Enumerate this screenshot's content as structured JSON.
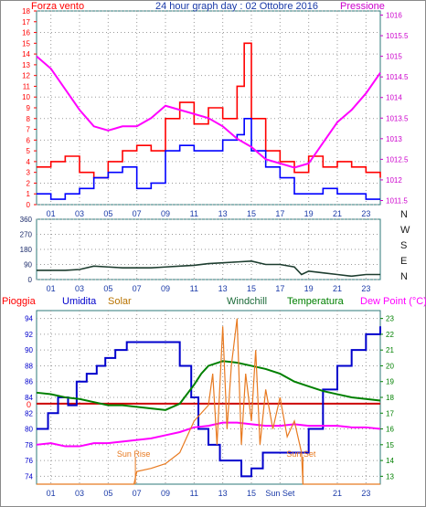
{
  "chart_data": [
    {
      "type": "line",
      "title": "24 hour graph day : 02 Ottobre 2016",
      "left_label": "Forza vento",
      "right_label": "Pressione",
      "x_ticks": [
        "01",
        "03",
        "05",
        "07",
        "09",
        "11",
        "13",
        "15",
        "17",
        "19",
        "21",
        "23"
      ],
      "y_left": {
        "min": 0,
        "max": 18,
        "ticks": [
          "0",
          "1",
          "2",
          "3",
          "4",
          "5",
          "6",
          "7",
          "8",
          "9",
          "10",
          "11",
          "12",
          "13",
          "14",
          "15",
          "16",
          "17",
          "18"
        ]
      },
      "y_right": {
        "min": 1011.4,
        "max": 1016.1,
        "ticks": [
          "1011.5",
          "1012",
          "1012.5",
          "1013",
          "1013.5",
          "1014",
          "1014.5",
          "1015",
          "1015.5",
          "1016"
        ]
      },
      "grid": true,
      "colors": {
        "gust": "#ff0000",
        "wind": "#0000ff",
        "pressure": "#ff00ff"
      },
      "series": [
        {
          "key": "gust",
          "x": [
            0.0,
            1.0,
            2.0,
            3.0,
            4.0,
            5.0,
            6.0,
            7.0,
            8.0,
            9.0,
            10.0,
            11.0,
            12.0,
            13.0,
            14.0,
            14.5,
            15.0,
            16.0,
            17.0,
            18.0,
            19.0,
            20.0,
            21.0,
            22.0,
            23.0,
            24.0
          ],
          "y": [
            3.5,
            4.0,
            4.5,
            3.0,
            2.5,
            4.0,
            5.0,
            5.5,
            5.0,
            8.0,
            9.5,
            7.5,
            9.0,
            8.0,
            11.0,
            15.0,
            8.0,
            5.0,
            4.0,
            3.0,
            4.5,
            3.5,
            4.0,
            3.5,
            3.0,
            2.5
          ]
        },
        {
          "key": "wind",
          "x": [
            0.0,
            1.0,
            2.0,
            3.0,
            4.0,
            5.0,
            6.0,
            7.0,
            8.0,
            9.0,
            10.0,
            11.0,
            12.0,
            13.0,
            14.0,
            14.5,
            15.0,
            16.0,
            17.0,
            18.0,
            19.0,
            20.0,
            21.0,
            22.0,
            23.0,
            24.0
          ],
          "y": [
            1.0,
            0.5,
            1.0,
            1.5,
            2.5,
            3.0,
            3.5,
            1.5,
            2.0,
            5.0,
            5.5,
            5.0,
            5.0,
            6.0,
            6.5,
            8.0,
            5.0,
            3.5,
            2.5,
            1.0,
            1.0,
            1.5,
            1.0,
            1.0,
            0.5,
            0.5
          ]
        },
        {
          "key": "pressure",
          "x": [
            0.0,
            1.0,
            2.0,
            3.0,
            4.0,
            5.0,
            6.0,
            7.0,
            8.0,
            9.0,
            10.0,
            11.0,
            12.0,
            13.0,
            14.0,
            15.0,
            16.0,
            17.0,
            18.0,
            19.0,
            20.0,
            21.0,
            22.0,
            23.0,
            24.0
          ],
          "y": [
            1015.0,
            1014.7,
            1014.2,
            1013.7,
            1013.3,
            1013.2,
            1013.3,
            1013.3,
            1013.5,
            1013.8,
            1013.7,
            1013.6,
            1013.5,
            1013.3,
            1013.0,
            1012.8,
            1012.5,
            1012.4,
            1012.3,
            1012.4,
            1012.9,
            1013.4,
            1013.7,
            1014.1,
            1014.6
          ]
        }
      ]
    },
    {
      "type": "line",
      "title": "",
      "x_ticks": [
        "01",
        "03",
        "05",
        "07",
        "09",
        "11",
        "13",
        "15",
        "17",
        "19",
        "21",
        "23"
      ],
      "y_left": {
        "min": 0,
        "max": 360,
        "ticks": [
          "0",
          "90",
          "180",
          "270",
          "360"
        ]
      },
      "direction_labels": [
        "N",
        "W",
        "S",
        "E",
        "N"
      ],
      "grid": true,
      "series": [
        {
          "key": "direction",
          "color": "#1d3d2f",
          "x": [
            0.0,
            1.0,
            2.0,
            3.0,
            4.0,
            5.0,
            6.0,
            7.0,
            8.0,
            9.0,
            10.0,
            11.0,
            12.0,
            13.0,
            14.0,
            15.0,
            16.0,
            17.0,
            18.0,
            18.5,
            19.0,
            20.0,
            21.0,
            22.0,
            23.0,
            24.0
          ],
          "y": [
            55,
            55,
            55,
            60,
            80,
            75,
            70,
            70,
            70,
            75,
            80,
            85,
            95,
            100,
            105,
            110,
            90,
            90,
            75,
            30,
            50,
            40,
            30,
            20,
            30,
            30
          ]
        }
      ]
    },
    {
      "type": "line",
      "title": "",
      "legend": [
        {
          "label": "Pioggia",
          "color": "#ff0000"
        },
        {
          "label": "Umidita",
          "color": "#0000cc"
        },
        {
          "label": "Solar",
          "color": "#b87300"
        },
        {
          "label": "Windchill",
          "color": "#1b6a38"
        },
        {
          "label": "Temperatura",
          "color": "#008000"
        },
        {
          "label": "Dew Point (°C)",
          "color": "#ff00ff"
        }
      ],
      "x_ticks": [
        "01",
        "03",
        "05",
        "07",
        "09",
        "11",
        "13",
        "15",
        "Sun Set",
        "21",
        "23"
      ],
      "y_left": {
        "min": 73,
        "max": 95,
        "ticks": [
          "74",
          "76",
          "78",
          "80",
          "82",
          "84",
          "86",
          "88",
          "90",
          "92",
          "94"
        ]
      },
      "y_right": {
        "min": 12.5,
        "max": 23.5,
        "ticks": [
          "13",
          "14",
          "15",
          "16",
          "17",
          "18",
          "19",
          "20",
          "21",
          "22",
          "23"
        ]
      },
      "rain_axis_label": "0",
      "annotations": [
        "Sun Rise",
        "Sun Set"
      ],
      "grid": true,
      "series": [
        {
          "key": "humidity",
          "axis": "left",
          "color": "#0000cc",
          "x": [
            0.0,
            0.8,
            1.5,
            2.2,
            2.8,
            3.5,
            4.2,
            4.8,
            5.5,
            6.3,
            7.0,
            9.0,
            10.0,
            10.8,
            11.3,
            12.0,
            12.8,
            13.5,
            14.3,
            15.0,
            15.8,
            16.5,
            17.2,
            18.0,
            19.0,
            20.0,
            21.0,
            22.0,
            23.0,
            24.0
          ],
          "y": [
            80,
            82,
            84,
            83,
            86,
            87,
            88,
            89,
            90,
            91,
            91,
            91,
            88,
            84,
            80,
            78,
            76,
            76,
            74,
            75,
            77,
            77,
            77,
            77,
            80,
            85,
            88,
            90,
            92,
            93
          ]
        },
        {
          "key": "temperature",
          "axis": "right",
          "color": "#008000",
          "x": [
            0.0,
            1.0,
            2.0,
            3.0,
            4.0,
            5.0,
            6.0,
            7.0,
            8.0,
            9.0,
            10.0,
            11.0,
            11.5,
            12.0,
            13.0,
            14.0,
            15.0,
            16.0,
            17.0,
            18.0,
            19.0,
            20.0,
            21.0,
            22.0,
            23.0,
            24.0
          ],
          "y": [
            18.3,
            18.2,
            18.0,
            17.9,
            17.7,
            17.5,
            17.5,
            17.4,
            17.3,
            17.2,
            17.6,
            18.8,
            19.5,
            20.0,
            20.3,
            20.2,
            20.0,
            19.8,
            19.5,
            19.0,
            18.7,
            18.4,
            18.2,
            18.0,
            17.9,
            17.8
          ]
        },
        {
          "key": "dewpoint",
          "axis": "right",
          "color": "#ff00ff",
          "x": [
            0.0,
            1.0,
            2.0,
            3.0,
            4.0,
            5.0,
            6.0,
            7.0,
            8.0,
            9.0,
            10.0,
            11.0,
            12.0,
            13.0,
            14.0,
            15.0,
            16.0,
            17.0,
            18.0,
            19.0,
            20.0,
            21.0,
            22.0,
            23.0,
            24.0
          ],
          "y": [
            15.0,
            15.1,
            14.9,
            14.9,
            15.1,
            15.1,
            15.2,
            15.3,
            15.4,
            15.6,
            15.8,
            16.1,
            16.2,
            16.4,
            16.4,
            16.3,
            16.2,
            16.2,
            16.3,
            16.2,
            16.2,
            16.2,
            16.1,
            16.1,
            16.0
          ]
        },
        {
          "key": "solar",
          "axis": "right",
          "color": "#e87a20",
          "x": [
            0.0,
            6.8,
            7.0,
            8.0,
            9.0,
            10.0,
            10.5,
            11.0,
            11.5,
            12.0,
            12.3,
            12.6,
            13.0,
            13.3,
            13.6,
            14.0,
            14.3,
            14.6,
            15.0,
            15.3,
            15.6,
            16.0,
            16.5,
            17.0,
            17.5,
            18.0,
            18.5,
            18.6,
            24.0
          ],
          "y": [
            12.5,
            12.5,
            13.3,
            13.5,
            13.8,
            14.5,
            15.5,
            16.5,
            17.0,
            17.5,
            19.5,
            15.0,
            22.5,
            16.0,
            20.0,
            23.0,
            15.0,
            19.5,
            16.5,
            21.0,
            15.0,
            18.5,
            16.0,
            18.0,
            15.5,
            16.5,
            14.5,
            12.5,
            12.5
          ]
        }
      ]
    }
  ]
}
